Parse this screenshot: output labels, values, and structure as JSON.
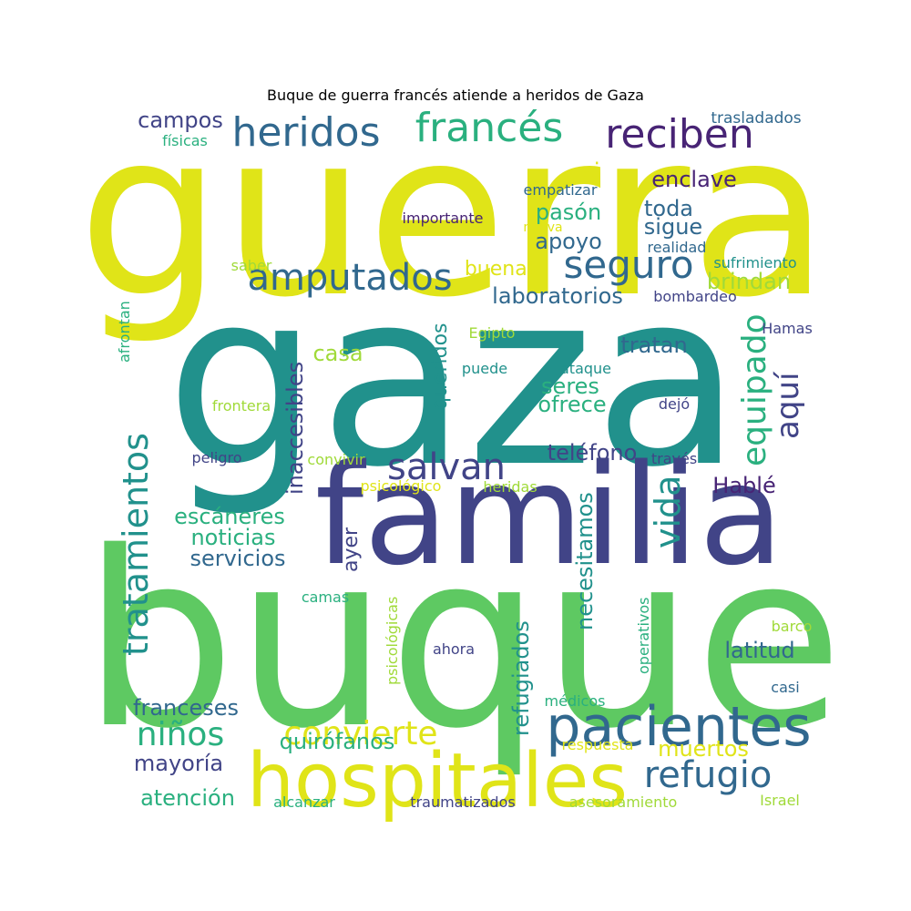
{
  "title": "Buque de guerra francés atiende a heridos de Gaza",
  "palette": {
    "yellow": "#e0e418",
    "teal": "#21918c",
    "indigo": "#414487",
    "blue": "#31688e",
    "green": "#5ec962",
    "purple": "#482475",
    "lime": "#a0da39",
    "seafoam": "#2ab07f",
    "cyan": "#1f9e89"
  },
  "words": [
    "guerra",
    "gaza",
    "buque",
    "familia",
    "hospitales",
    "pacientes",
    "heridos",
    "francés",
    "reciben",
    "amputados",
    "seguro",
    "tratamientos",
    "salvan",
    "equipado",
    "vida",
    "aquí",
    "refugio",
    "convierte",
    "niños",
    "campos",
    "físicas",
    "trasladados",
    "si",
    "enclave",
    "empatizar",
    "toda",
    "pasón",
    "importante",
    "nueva",
    "sigue",
    "apoyo",
    "realidad",
    "saber",
    "buenas",
    "sufrimiento",
    "brindan",
    "afrontan",
    "laboratorios",
    "bombardeo",
    "inaccesibles",
    "queridos",
    "Egipto",
    "Hamas",
    "casa",
    "tratan",
    "puede",
    "ataque",
    "seres",
    "ofrece",
    "frontera",
    "dejó",
    "peligro",
    "teléfono",
    "convivir",
    "través",
    "psicológico",
    "heridas",
    "Hablé",
    "escáneres",
    "noticias",
    "ayer",
    "necesitamos",
    "servicios",
    "camas",
    "psicológicas",
    "refugiados",
    "operativos",
    "barco",
    "latitud",
    "ahora",
    "casi",
    "médicos",
    "franceses",
    "quirófanos",
    "muertos",
    "respuesta",
    "mayoría",
    "atención",
    "alcanzar",
    "traumatizados",
    "asesoramiento",
    "Israel"
  ]
}
